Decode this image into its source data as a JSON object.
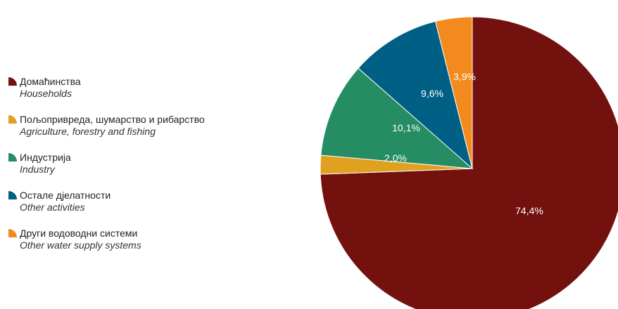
{
  "chart_data": {
    "type": "pie",
    "title": "",
    "slices": [
      {
        "label": "Домаћинства",
        "sublabel": "Households",
        "value": 74.4,
        "display": "74,4%",
        "color": "#73110f"
      },
      {
        "label": "Пољопривреда, шумарство и рибарство",
        "sublabel": "Agriculture, forestry and fishing",
        "value": 2.0,
        "display": "2,0%",
        "color": "#e0a020"
      },
      {
        "label": "Индустрија",
        "sublabel": "Industry",
        "value": 10.1,
        "display": "10,1%",
        "color": "#258c64"
      },
      {
        "label": "Остале дјелатности",
        "sublabel": "Other activities",
        "value": 9.6,
        "display": "9,6%",
        "color": "#005f85"
      },
      {
        "label": "Други водоводни системи",
        "sublabel": "Other water supply systems",
        "value": 3.9,
        "display": "3,9%",
        "color": "#f28a1e"
      }
    ],
    "start": "top",
    "direction": "clockwise",
    "legend_position": "left"
  }
}
